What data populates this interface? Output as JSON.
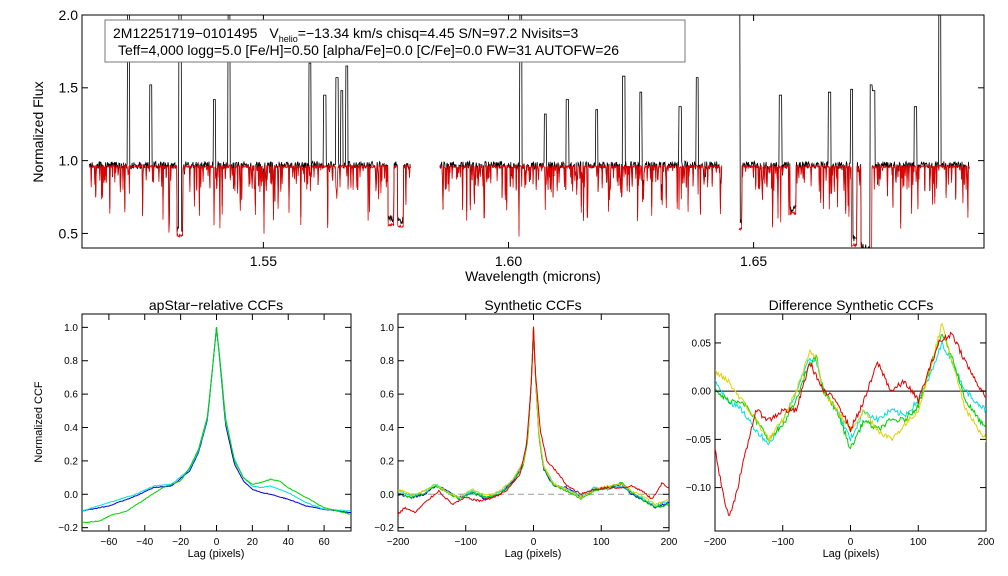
{
  "header": {
    "line1_id": "2M12251719−0101495",
    "vhelio_label": "V",
    "vhelio_sub": "helio",
    "line1_rest": "=−13.34 km/s  chisq=4.45  S/N=97.2  Nvisits=3",
    "line2": "Teff=4,000 logg=5.0 [Fe/H]=0.50 [alpha/Fe]=0.0 [C/Fe]=0.0 FW=31 AUTOFW=26"
  },
  "colors": {
    "observed": "#000000",
    "model": "#e00000",
    "blue": "#0000e0",
    "cyan": "#00e0e0",
    "green": "#00d000",
    "yellow": "#e0d000",
    "red": "#e00000",
    "zero_line": "#9a9a9a"
  },
  "chart_data": [
    {
      "type": "line",
      "title": "",
      "xlabel": "Wavelength (microns)",
      "ylabel": "Normalized Flux",
      "xlim": [
        1.513,
        1.697
      ],
      "ylim": [
        0.4,
        2.0
      ],
      "xticks": [
        1.55,
        1.6,
        1.65
      ],
      "xtick_labels": [
        "1.55",
        "1.60",
        "1.65"
      ],
      "yticks": [
        0.5,
        1.0,
        1.5,
        2.0
      ],
      "ytick_labels": [
        "0.5",
        "1.0",
        "1.5",
        "2.0"
      ],
      "segments": [
        [
          1.5145,
          1.58
        ],
        [
          1.586,
          1.6435
        ],
        [
          1.647,
          1.694
        ]
      ],
      "series": [
        {
          "name": "observed",
          "color": "#000000",
          "continuum": 0.97
        },
        {
          "name": "model",
          "color": "#e00000",
          "continuum": 0.96
        }
      ],
      "emission_spikes": [
        {
          "x": 1.5225,
          "peak": 2.0
        },
        {
          "x": 1.527,
          "peak": 1.52
        },
        {
          "x": 1.533,
          "peak": 2.0
        },
        {
          "x": 1.54,
          "peak": 1.42
        },
        {
          "x": 1.543,
          "peak": 2.0
        },
        {
          "x": 1.5595,
          "peak": 1.67
        },
        {
          "x": 1.5625,
          "peak": 1.45
        },
        {
          "x": 1.565,
          "peak": 1.57
        },
        {
          "x": 1.566,
          "peak": 1.48
        },
        {
          "x": 1.567,
          "peak": 1.65
        },
        {
          "x": 1.6025,
          "peak": 2.0
        },
        {
          "x": 1.6075,
          "peak": 1.32
        },
        {
          "x": 1.612,
          "peak": 1.42
        },
        {
          "x": 1.618,
          "peak": 1.35
        },
        {
          "x": 1.6235,
          "peak": 1.58
        },
        {
          "x": 1.627,
          "peak": 1.47
        },
        {
          "x": 1.635,
          "peak": 1.37
        },
        {
          "x": 1.6385,
          "peak": 1.57
        },
        {
          "x": 1.647,
          "peak": 2.0
        },
        {
          "x": 1.6555,
          "peak": 1.45
        },
        {
          "x": 1.6655,
          "peak": 1.47
        },
        {
          "x": 1.67,
          "peak": 1.49
        },
        {
          "x": 1.674,
          "peak": 1.52
        },
        {
          "x": 1.6745,
          "peak": 1.48
        },
        {
          "x": 1.683,
          "peak": 1.37
        },
        {
          "x": 1.688,
          "peak": 2.0
        }
      ],
      "absorption_dips": [
        {
          "x": 1.533,
          "depth": 0.56
        },
        {
          "x": 1.576,
          "depth": 0.63
        },
        {
          "x": 1.578,
          "depth": 0.62
        },
        {
          "x": 1.647,
          "depth": 0.6
        },
        {
          "x": 1.658,
          "depth": 0.7
        },
        {
          "x": 1.6705,
          "depth": 0.5
        },
        {
          "x": 1.6725,
          "depth": 0.44
        },
        {
          "x": 1.6735,
          "depth": 0.42
        }
      ]
    },
    {
      "type": "line",
      "title": "apStar−relative CCFs",
      "xlabel": "Lag (pixels)",
      "ylabel": "Normalized CCF",
      "xlim": [
        -75,
        75
      ],
      "ylim": [
        -0.22,
        1.08
      ],
      "xticks": [
        -60,
        -40,
        -20,
        0,
        20,
        40,
        60
      ],
      "xtick_labels": [
        "−60",
        "−40",
        "−20",
        "0",
        "20",
        "40",
        "60"
      ],
      "yticks": [
        -0.2,
        0.0,
        0.2,
        0.4,
        0.6,
        0.8,
        1.0
      ],
      "ytick_labels": [
        "−0.2",
        "0.0",
        "0.2",
        "0.4",
        "0.6",
        "0.8",
        "1.0"
      ],
      "series": [
        {
          "name": "blue",
          "color": "#0000e0",
          "x": [
            -75,
            -60,
            -45,
            -35,
            -25,
            -15,
            -10,
            -5,
            -2,
            0,
            2,
            5,
            10,
            15,
            20,
            25,
            30,
            40,
            50,
            60,
            75
          ],
          "y": [
            -0.1,
            -0.07,
            -0.01,
            0.04,
            0.05,
            0.14,
            0.25,
            0.45,
            0.78,
            1.0,
            0.78,
            0.42,
            0.18,
            0.08,
            0.03,
            0.01,
            0.0,
            -0.03,
            -0.07,
            -0.09,
            -0.11
          ]
        },
        {
          "name": "cyan",
          "color": "#00e0e0",
          "x": [
            -75,
            -60,
            -45,
            -35,
            -25,
            -15,
            -10,
            -5,
            -2,
            0,
            2,
            5,
            10,
            15,
            20,
            25,
            30,
            40,
            50,
            60,
            75
          ],
          "y": [
            -0.1,
            -0.05,
            0.0,
            0.05,
            0.06,
            0.15,
            0.26,
            0.46,
            0.78,
            1.0,
            0.79,
            0.44,
            0.21,
            0.1,
            0.05,
            0.04,
            0.05,
            0.01,
            -0.05,
            -0.09,
            -0.1
          ]
        },
        {
          "name": "green",
          "color": "#00d000",
          "x": [
            -75,
            -65,
            -60,
            -50,
            -40,
            -30,
            -20,
            -15,
            -10,
            -5,
            -2,
            0,
            2,
            5,
            10,
            15,
            20,
            25,
            30,
            35,
            40,
            50,
            60,
            75
          ],
          "y": [
            -0.17,
            -0.16,
            -0.13,
            -0.1,
            -0.03,
            0.04,
            0.08,
            0.16,
            0.27,
            0.47,
            0.78,
            1.0,
            0.8,
            0.46,
            0.2,
            0.1,
            0.06,
            0.07,
            0.09,
            0.08,
            0.04,
            -0.02,
            -0.08,
            -0.12
          ]
        }
      ]
    },
    {
      "type": "line",
      "title": "Synthetic CCFs",
      "xlabel": "Lag (pixels)",
      "ylabel": "",
      "xlim": [
        -200,
        200
      ],
      "ylim": [
        -0.22,
        1.08
      ],
      "xticks": [
        -200,
        -100,
        0,
        100,
        200
      ],
      "xtick_labels": [
        "−200",
        "−100",
        "0",
        "100",
        "200"
      ],
      "yticks": [
        -0.2,
        0.0,
        0.2,
        0.4,
        0.6,
        0.8,
        1.0
      ],
      "ytick_labels": [
        "−0.2",
        "0.0",
        "0.2",
        "0.4",
        "0.6",
        "0.8",
        "1.0"
      ],
      "zero_line": 0.0,
      "series": [
        {
          "name": "blue",
          "color": "#0000e0",
          "x": [
            -200,
            -180,
            -160,
            -145,
            -130,
            -110,
            -90,
            -70,
            -50,
            -30,
            -15,
            -8,
            -3,
            0,
            3,
            8,
            15,
            30,
            50,
            70,
            90,
            110,
            130,
            145,
            160,
            180,
            200
          ],
          "y": [
            0.0,
            -0.02,
            0.0,
            0.05,
            0.03,
            -0.02,
            0.01,
            -0.03,
            0.0,
            0.08,
            0.18,
            0.35,
            0.7,
            1.0,
            0.7,
            0.35,
            0.15,
            0.05,
            0.04,
            -0.02,
            0.03,
            0.04,
            0.06,
            0.0,
            -0.03,
            -0.08,
            -0.05
          ]
        },
        {
          "name": "cyan",
          "color": "#00e0e0",
          "x": [
            -200,
            -180,
            -160,
            -145,
            -130,
            -110,
            -90,
            -70,
            -50,
            -30,
            -15,
            -8,
            -3,
            0,
            3,
            8,
            15,
            30,
            50,
            70,
            90,
            110,
            130,
            145,
            160,
            180,
            200
          ],
          "y": [
            0.02,
            -0.01,
            0.02,
            0.06,
            0.02,
            -0.02,
            0.02,
            -0.02,
            0.01,
            0.09,
            0.19,
            0.36,
            0.71,
            1.0,
            0.71,
            0.36,
            0.17,
            0.06,
            0.03,
            -0.01,
            0.04,
            0.03,
            0.05,
            0.01,
            -0.02,
            -0.07,
            -0.04
          ]
        },
        {
          "name": "green",
          "color": "#00d000",
          "x": [
            -200,
            -180,
            -160,
            -145,
            -130,
            -110,
            -90,
            -70,
            -50,
            -30,
            -15,
            -8,
            -3,
            0,
            3,
            8,
            15,
            30,
            50,
            70,
            90,
            110,
            130,
            145,
            160,
            180,
            200
          ],
          "y": [
            0.01,
            -0.02,
            0.01,
            0.05,
            0.02,
            -0.03,
            0.01,
            -0.02,
            0.0,
            0.07,
            0.17,
            0.34,
            0.7,
            1.0,
            0.7,
            0.34,
            0.16,
            0.05,
            0.02,
            -0.03,
            0.02,
            0.04,
            0.07,
            0.01,
            -0.03,
            -0.08,
            -0.06
          ]
        },
        {
          "name": "yellow",
          "color": "#e0d000",
          "x": [
            -200,
            -180,
            -160,
            -145,
            -130,
            -110,
            -90,
            -70,
            -50,
            -30,
            -15,
            -8,
            -3,
            0,
            3,
            8,
            15,
            30,
            50,
            70,
            90,
            110,
            130,
            145,
            160,
            180,
            200
          ],
          "y": [
            0.03,
            0.0,
            0.02,
            0.06,
            0.02,
            -0.02,
            0.03,
            -0.01,
            0.02,
            0.09,
            0.19,
            0.36,
            0.7,
            1.0,
            0.71,
            0.36,
            0.17,
            0.06,
            0.03,
            -0.02,
            0.03,
            0.05,
            0.06,
            0.02,
            -0.01,
            -0.06,
            -0.03
          ]
        },
        {
          "name": "red",
          "color": "#e00000",
          "x": [
            -200,
            -190,
            -175,
            -160,
            -140,
            -120,
            -100,
            -80,
            -60,
            -40,
            -20,
            -10,
            -3,
            0,
            3,
            10,
            20,
            35,
            50,
            70,
            90,
            110,
            130,
            145,
            160,
            175,
            190,
            200
          ],
          "y": [
            -0.12,
            -0.08,
            -0.11,
            -0.05,
            0.02,
            -0.06,
            -0.02,
            -0.04,
            -0.02,
            0.02,
            0.12,
            0.3,
            0.68,
            1.0,
            0.72,
            0.38,
            0.2,
            0.13,
            0.05,
            0.0,
            0.03,
            0.04,
            0.04,
            0.05,
            0.02,
            -0.03,
            0.07,
            0.03
          ]
        }
      ]
    },
    {
      "type": "line",
      "title": "Difference Synthetic CCFs",
      "xlabel": "Lag (pixels)",
      "ylabel": "",
      "xlim": [
        -200,
        200
      ],
      "ylim": [
        -0.145,
        0.08
      ],
      "xticks": [
        -200,
        -100,
        0,
        100,
        200
      ],
      "xtick_labels": [
        "−200",
        "−100",
        "0",
        "100",
        "200"
      ],
      "yticks": [
        -0.1,
        -0.05,
        0.0,
        0.05
      ],
      "ytick_labels": [
        "−0.10",
        "−0.05",
        "0.00",
        "0.05"
      ],
      "zero_line": 0.0,
      "series": [
        {
          "name": "cyan",
          "color": "#00e0e0",
          "x": [
            -200,
            -180,
            -160,
            -140,
            -120,
            -100,
            -80,
            -60,
            -50,
            -40,
            -20,
            0,
            20,
            40,
            60,
            80,
            100,
            120,
            135,
            150,
            170,
            200
          ],
          "y": [
            0.01,
            -0.01,
            -0.02,
            -0.04,
            -0.055,
            -0.03,
            0.0,
            0.035,
            0.03,
            0.0,
            -0.02,
            -0.05,
            -0.02,
            -0.03,
            -0.02,
            -0.025,
            -0.01,
            0.02,
            0.05,
            0.03,
            0.0,
            -0.02
          ]
        },
        {
          "name": "green",
          "color": "#00d000",
          "x": [
            -200,
            -180,
            -160,
            -140,
            -120,
            -100,
            -80,
            -60,
            -50,
            -40,
            -20,
            0,
            20,
            40,
            60,
            80,
            100,
            120,
            135,
            150,
            170,
            200
          ],
          "y": [
            0.0,
            -0.01,
            -0.01,
            -0.03,
            -0.05,
            -0.035,
            -0.01,
            0.03,
            0.035,
            0.0,
            -0.02,
            -0.06,
            -0.03,
            -0.04,
            -0.03,
            -0.03,
            -0.015,
            0.03,
            0.06,
            0.035,
            -0.01,
            -0.04
          ]
        },
        {
          "name": "yellow",
          "color": "#e0d000",
          "x": [
            -200,
            -180,
            -160,
            -140,
            -120,
            -100,
            -80,
            -60,
            -50,
            -40,
            -20,
            0,
            20,
            40,
            60,
            80,
            100,
            120,
            135,
            150,
            170,
            200
          ],
          "y": [
            0.02,
            0.01,
            -0.01,
            -0.03,
            -0.05,
            -0.03,
            0.0,
            0.04,
            0.035,
            0.0,
            -0.02,
            -0.04,
            -0.02,
            -0.04,
            -0.05,
            -0.035,
            -0.02,
            0.03,
            0.07,
            0.03,
            -0.02,
            -0.05
          ]
        },
        {
          "name": "red",
          "color": "#e00000",
          "x": [
            -200,
            -190,
            -180,
            -170,
            -160,
            -150,
            -140,
            -120,
            -100,
            -80,
            -60,
            -40,
            -20,
            0,
            20,
            40,
            60,
            80,
            100,
            115,
            130,
            150,
            170,
            185,
            200
          ],
          "y": [
            -0.06,
            -0.1,
            -0.13,
            -0.11,
            -0.08,
            -0.05,
            -0.02,
            -0.03,
            -0.02,
            -0.02,
            0.03,
            0.0,
            -0.01,
            -0.04,
            -0.01,
            0.03,
            0.0,
            0.01,
            -0.01,
            0.02,
            0.05,
            0.06,
            0.03,
            0.01,
            -0.005
          ]
        }
      ]
    }
  ]
}
